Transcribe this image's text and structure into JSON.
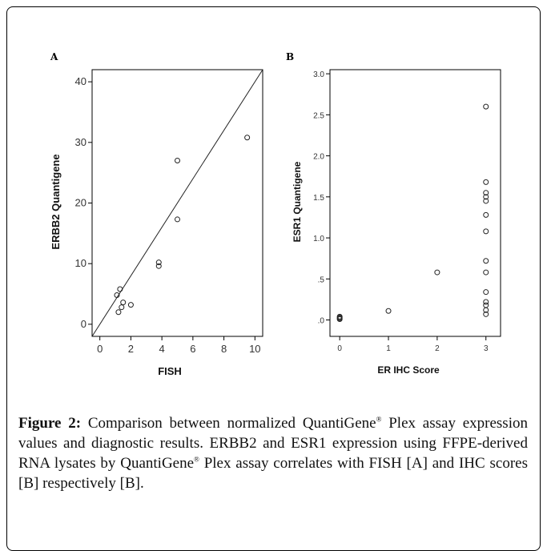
{
  "chart_data": [
    {
      "type": "scatter",
      "panel": "A",
      "xlabel": "FISH",
      "ylabel": "ERBB2 Quantigene",
      "xlim": [
        -0.5,
        10.5
      ],
      "ylim": [
        -2,
        42
      ],
      "xticks": [
        "0",
        "2",
        "4",
        "6",
        "8",
        "10"
      ],
      "yticks": [
        "0",
        "10",
        "20",
        "30",
        "40"
      ],
      "reference_line": {
        "from": [
          -0.5,
          -2
        ],
        "to": [
          10.5,
          42
        ]
      },
      "points": [
        [
          1.1,
          4.8
        ],
        [
          1.3,
          5.8
        ],
        [
          1.2,
          2.0
        ],
        [
          1.4,
          2.8
        ],
        [
          1.5,
          3.6
        ],
        [
          2.0,
          3.2
        ],
        [
          3.8,
          10.2
        ],
        [
          3.8,
          9.6
        ],
        [
          5.0,
          27.0
        ],
        [
          5.0,
          17.3
        ],
        [
          9.5,
          30.8
        ]
      ]
    },
    {
      "type": "scatter",
      "panel": "B",
      "xlabel": "ER IHC Score",
      "ylabel": "ESR1 Quantigene",
      "xlim": [
        -0.2,
        3.3
      ],
      "ylim": [
        -0.2,
        3.05
      ],
      "xticks": [
        "0",
        "1",
        "2",
        "3"
      ],
      "yticks": [
        ".0",
        ".5",
        "1.0",
        "1.5",
        "2.0",
        "2.5",
        "3.0"
      ],
      "points": [
        [
          0,
          0.01
        ],
        [
          0,
          0.02
        ],
        [
          0,
          0.03
        ],
        [
          0,
          0.04
        ],
        [
          1,
          0.11
        ],
        [
          2,
          0.58
        ],
        [
          3,
          2.6
        ],
        [
          3,
          1.68
        ],
        [
          3,
          1.55
        ],
        [
          3,
          1.5
        ],
        [
          3,
          1.45
        ],
        [
          3,
          1.28
        ],
        [
          3,
          1.08
        ],
        [
          3,
          0.72
        ],
        [
          3,
          0.58
        ],
        [
          3,
          0.34
        ],
        [
          3,
          0.22
        ],
        [
          3,
          0.18
        ],
        [
          3,
          0.12
        ],
        [
          3,
          0.07
        ]
      ]
    }
  ],
  "caption": {
    "label": "Figure 2:",
    "superscript": "®",
    "part1": " Comparison between normalized QuantiGene",
    "part2": " Plex assay expression values and diagnostic results. ERBB2 and ESR1 expression using FFPE-derived RNA lysates by QuantiGene",
    "part3": " Plex assay correlates with FISH [A] and IHC scores [B] respectively [B]."
  }
}
